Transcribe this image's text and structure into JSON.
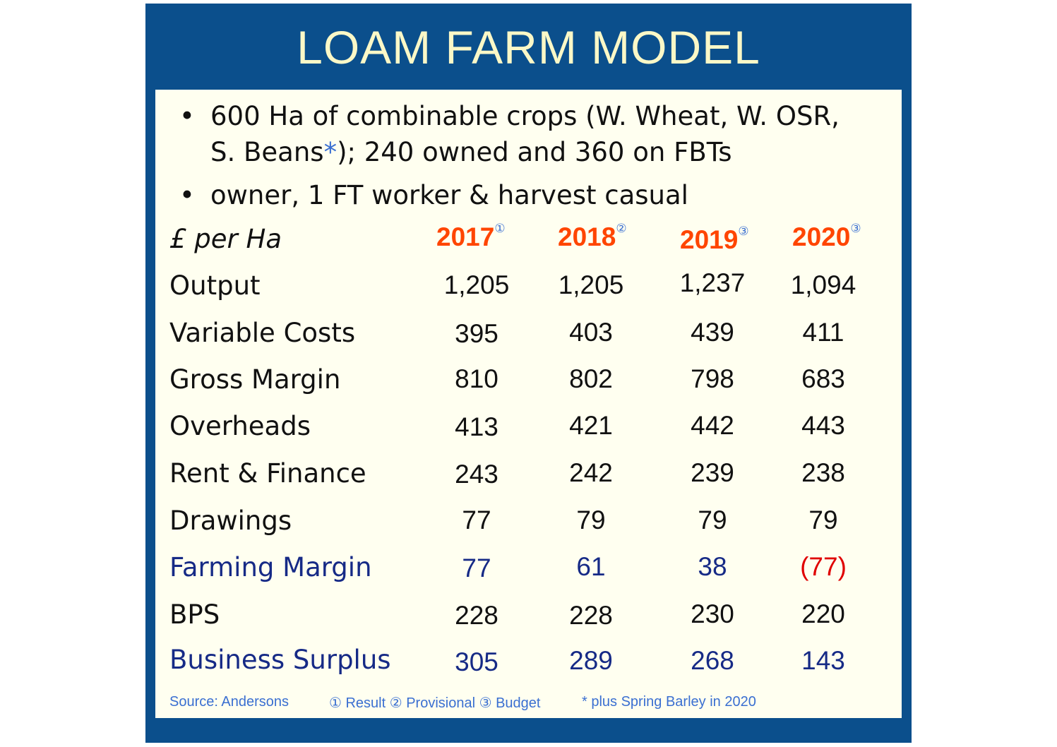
{
  "title": "LOAM FARM MODEL",
  "bullets": [
    {
      "text_a": "600 Ha of combinable crops (W. Wheat, W. OSR,",
      "text_b": "S. Beans",
      "star": "*",
      "text_c": "); 240 owned and 360 on FBTs"
    },
    {
      "text": "owner, 1 FT worker & harvest casual"
    }
  ],
  "bullet_glyph": "•",
  "table": {
    "unit_label": "£ per Ha",
    "years": [
      {
        "year": "2017",
        "mark": "①"
      },
      {
        "year": "2018",
        "mark": "②"
      },
      {
        "year": "2019",
        "mark": "③"
      },
      {
        "year": "2020",
        "mark": "③"
      }
    ],
    "rows": [
      {
        "label": "Output",
        "values": [
          "1,205",
          "1,205",
          "1,237",
          "1,094"
        ]
      },
      {
        "label": "Variable Costs",
        "values": [
          "395",
          "403",
          "439",
          "411"
        ]
      },
      {
        "label": "Gross Margin",
        "values": [
          "810",
          "802",
          "798",
          "683"
        ]
      },
      {
        "label": "Overheads",
        "values": [
          "413",
          "421",
          "442",
          "443"
        ]
      },
      {
        "label": "Rent & Finance",
        "values": [
          "243",
          "242",
          "239",
          "238"
        ]
      },
      {
        "label": "Drawings",
        "values": [
          "77",
          "79",
          "79",
          "79"
        ]
      },
      {
        "label": "Farming Margin",
        "values": [
          "77",
          "61",
          "38",
          "(77)"
        ]
      },
      {
        "label": "BPS",
        "values": [
          "228",
          "228",
          "230",
          "220"
        ]
      },
      {
        "label": "Business Surplus",
        "values": [
          "305",
          "289",
          "268",
          "143"
        ]
      }
    ]
  },
  "footer": {
    "source": "Source: Andersons",
    "legend": "① Result  ② Provisional ③ Budget",
    "note": "* plus Spring Barley in 2020"
  },
  "colors": {
    "frame": "#0b4f8c",
    "title": "#fbf8c7",
    "panel": "#fffff0",
    "year": "#ff4500",
    "highlight_row": "#162a86",
    "negative": "#e00000",
    "footnote": "#3a6fd1"
  }
}
